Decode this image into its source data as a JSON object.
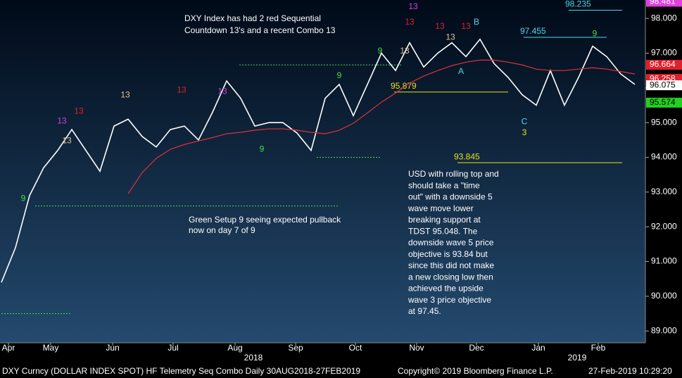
{
  "chart_data": {
    "type": "line",
    "title": "DXY Curncy (DOLLAR INDEX SPOT) HF Telemetry Seq Combo  Daily 30AUG2018-27FEB2019",
    "copyright": "Copyright© 2019 Bloomberg Finance L.P.",
    "timestamp": "27-Feb-2019 10:29:20",
    "x": [
      0,
      1,
      2,
      3,
      4,
      5,
      6,
      7,
      8,
      9,
      10,
      11,
      12,
      13,
      14,
      15,
      16,
      17,
      18,
      19,
      20,
      21,
      22,
      23,
      24,
      25,
      26,
      27,
      28,
      29,
      30,
      31,
      32,
      33,
      34,
      35,
      36,
      37,
      38,
      39,
      40,
      41,
      42,
      43,
      44,
      45
    ],
    "series": [
      {
        "color": "#ffffff",
        "values": [
          90.4,
          91.4,
          92.9,
          93.7,
          94.2,
          94.8,
          94.2,
          93.6,
          94.9,
          95.1,
          94.6,
          94.3,
          94.8,
          94.9,
          94.5,
          95.3,
          96.2,
          95.7,
          94.9,
          95.0,
          95.0,
          94.7,
          94.2,
          95.7,
          96.1,
          95.2,
          96.1,
          97.0,
          96.5,
          97.3,
          96.6,
          97.0,
          97.3,
          96.9,
          97.4,
          96.7,
          96.3,
          95.8,
          95.5,
          96.5,
          95.5,
          96.3,
          97.2,
          96.9,
          96.4,
          96.1
        ]
      },
      {
        "color": "#e0303a",
        "values": [
          null,
          null,
          null,
          null,
          null,
          null,
          null,
          null,
          null,
          92.95,
          93.56,
          93.97,
          94.23,
          94.37,
          94.47,
          94.57,
          94.68,
          94.72,
          94.78,
          94.82,
          94.82,
          94.78,
          94.72,
          94.68,
          94.78,
          94.98,
          95.28,
          95.59,
          95.85,
          96.14,
          96.34,
          96.5,
          96.64,
          96.74,
          96.8,
          96.8,
          96.74,
          96.66,
          96.54,
          96.5,
          96.5,
          96.54,
          96.58,
          96.54,
          96.47,
          96.4
        ]
      }
    ],
    "xlim": [
      -0.1,
      45.75
    ],
    "ylim": [
      88.66,
      98.53
    ],
    "yticks": [
      {
        "value": 89,
        "label": "89.000"
      },
      {
        "value": 90,
        "label": "90.000"
      },
      {
        "value": 91,
        "label": "91.000"
      },
      {
        "value": 92,
        "label": "92.000"
      },
      {
        "value": 93,
        "label": "93.000"
      },
      {
        "value": 94,
        "label": "94.000"
      },
      {
        "value": 95,
        "label": "95.000"
      },
      {
        "value": 96,
        "label": "96.000"
      },
      {
        "value": 97,
        "label": "97.000"
      },
      {
        "value": 98,
        "label": "98.000"
      }
    ],
    "xticks": [
      {
        "value": 0.5,
        "label": "Apr"
      },
      {
        "value": 3.5,
        "label": "May"
      },
      {
        "value": 7.9,
        "label": "Jun"
      },
      {
        "value": 12.2,
        "label": "Jul"
      },
      {
        "value": 16.6,
        "label": "Aug"
      },
      {
        "value": 20.9,
        "label": "Sep"
      },
      {
        "value": 25.15,
        "label": "Oct"
      },
      {
        "value": 29.5,
        "label": "Nov"
      },
      {
        "value": 33.75,
        "label": "Dec"
      },
      {
        "value": 38.15,
        "label": "Jan"
      },
      {
        "value": 42.4,
        "label": "Feb"
      }
    ],
    "year_labels": [
      {
        "value": 17.9,
        "label": "2018"
      },
      {
        "value": 40.9,
        "label": "2019"
      }
    ],
    "price_tags": [
      {
        "value": 98.481,
        "label": "98.481",
        "color": "#e040e0"
      },
      {
        "value": 96.664,
        "label": "96.664",
        "color": "#e0202a"
      },
      {
        "value": 96.258,
        "label": "96.258",
        "color": "#e0202a"
      },
      {
        "value": 96.075,
        "label": "96.075",
        "color": "#ffffff"
      },
      {
        "value": 95.574,
        "label": "95.574",
        "color": "#22d022"
      }
    ],
    "levels": [
      {
        "label": "98.235",
        "value": 98.235,
        "start": 40.3,
        "end": 44.1,
        "color": "#4fd6e8"
      },
      {
        "label": "97.455",
        "value": 97.455,
        "start": 37.1,
        "end": 43,
        "color": "#4fd6e8"
      },
      {
        "label": "95.879",
        "value": 95.879,
        "start": 27.9,
        "end": 36,
        "color": "#e8e020"
      },
      {
        "label": "93.845",
        "value": 93.845,
        "start": 32.4,
        "end": 44.1,
        "color": "#e8e020"
      },
      {
        "value": 96.66,
        "start": 16.9,
        "end": 28.5,
        "color": "#40e040"
      },
      {
        "value": 94.0,
        "start": 22.4,
        "end": 27,
        "color": "#40e040"
      },
      {
        "value": 92.6,
        "start": 2.4,
        "end": 24,
        "color": "#40e040"
      },
      {
        "value": 89.5,
        "start": 0,
        "end": 5,
        "color": "#40e040"
      }
    ],
    "count_labels": [
      {
        "text": "13",
        "x": 4.3,
        "y": 95.04,
        "color": "#d040d0"
      },
      {
        "text": "13",
        "x": 5.5,
        "y": 95.32,
        "color": "#e0202a"
      },
      {
        "text": "13",
        "x": 4.65,
        "y": 94.47,
        "color": "#e8c090"
      },
      {
        "text": "13",
        "x": 8.8,
        "y": 95.79,
        "color": "#e8c090"
      },
      {
        "text": "13",
        "x": 12.8,
        "y": 95.93,
        "color": "#e0202a"
      },
      {
        "text": "13",
        "x": 15.7,
        "y": 95.89,
        "color": "#d040d0"
      },
      {
        "text": "9",
        "x": 1.55,
        "y": 92.81,
        "color": "#40e040"
      },
      {
        "text": "9",
        "x": 18.5,
        "y": 94.23,
        "color": "#40e040"
      },
      {
        "text": "9",
        "x": 24,
        "y": 96.34,
        "color": "#40e040"
      },
      {
        "text": "9",
        "x": 26.9,
        "y": 97.05,
        "color": "#40e040"
      },
      {
        "text": "13",
        "x": 28.65,
        "y": 97.05,
        "color": "#e8c090"
      },
      {
        "text": "13",
        "x": 29.25,
        "y": 98.33,
        "color": "#d040d0"
      },
      {
        "text": "13",
        "x": 29,
        "y": 97.88,
        "color": "#e0202a"
      },
      {
        "text": "13",
        "x": 31.15,
        "y": 97.76,
        "color": "#e0202a"
      },
      {
        "text": "13",
        "x": 31.9,
        "y": 97.45,
        "color": "#e8c090"
      },
      {
        "text": "13",
        "x": 33,
        "y": 97.76,
        "color": "#e0202a"
      },
      {
        "text": "9",
        "x": 42.15,
        "y": 97.55,
        "color": "#40e040"
      },
      {
        "text": "B",
        "x": 33.75,
        "y": 97.88,
        "color": "#4fd6e8"
      },
      {
        "text": "A",
        "x": 32.65,
        "y": 96.47,
        "color": "#4fd6e8"
      },
      {
        "text": "C",
        "x": 37.15,
        "y": 95.02,
        "color": "#4fd6e8"
      },
      {
        "text": "3",
        "x": 37.15,
        "y": 94.7,
        "color": "#e8e020"
      }
    ],
    "annotations": [
      {
        "lines": [
          "DXY Index has had 2 red Sequential",
          "Countdown 13's and a recent Combo 13"
        ]
      },
      {
        "lines": [
          "Green Setup 9 seeing expected pullback",
          "now on day 7 of 9"
        ]
      },
      {
        "lines": [
          "USD with rolling top and",
          "should take a \"time",
          "out\" with a downside 5",
          "wave move lower",
          "breaking support at",
          "TDST 95.048.  The",
          "downside wave 5 price",
          "objective is 93.84 but",
          "since this did not make",
          "a new closing low then",
          "achieved the upside",
          "wave 3 price objective",
          "at 97.45."
        ]
      }
    ]
  }
}
